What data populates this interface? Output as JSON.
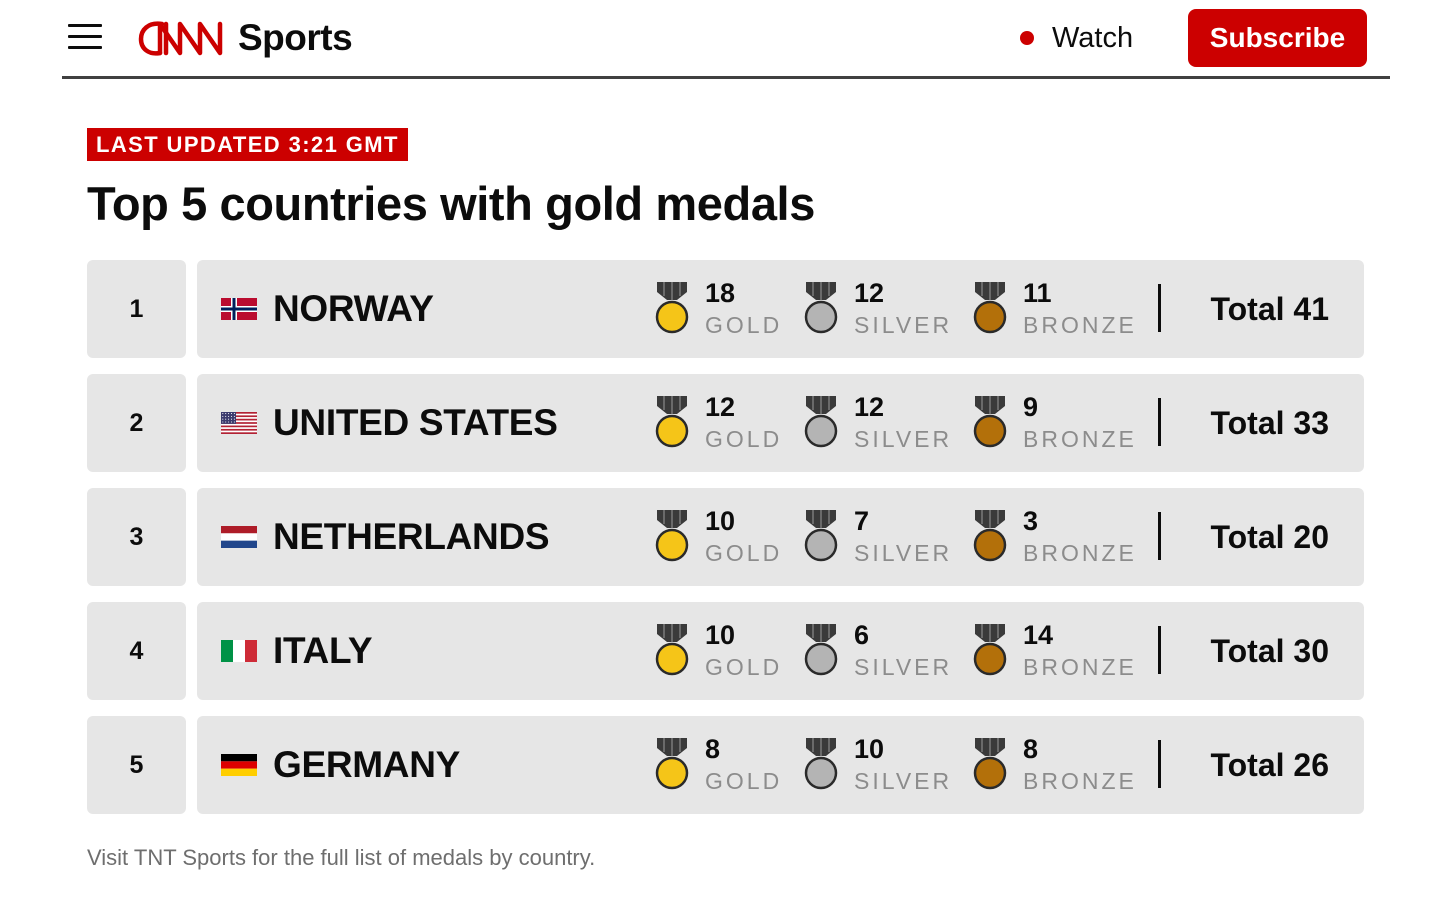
{
  "header": {
    "brand": "CNN",
    "section": "Sports",
    "watch_label": "Watch",
    "subscribe_label": "Subscribe",
    "brand_color": "#cc0000"
  },
  "badge": "LAST UPDATED 3:21 GMT",
  "title": "Top 5 countries with gold medals",
  "medal_labels": {
    "gold": "GOLD",
    "silver": "SILVER",
    "bronze": "BRONZE"
  },
  "medal_colors": {
    "gold": "#f5c518",
    "silver": "#b4b4b4",
    "bronze": "#b3700a",
    "ribbon": "#3a3a3a"
  },
  "countries": [
    {
      "rank": "1",
      "name": "NORWAY",
      "flag": "norway-flag-icon",
      "gold": "18",
      "silver": "12",
      "bronze": "11",
      "total": "Total 41"
    },
    {
      "rank": "2",
      "name": "UNITED STATES",
      "flag": "us-flag-icon",
      "gold": "12",
      "silver": "12",
      "bronze": "9",
      "total": "Total 33"
    },
    {
      "rank": "3",
      "name": "NETHERLANDS",
      "flag": "netherlands-flag-icon",
      "gold": "10",
      "silver": "7",
      "bronze": "3",
      "total": "Total 20"
    },
    {
      "rank": "4",
      "name": "ITALY",
      "flag": "italy-flag-icon",
      "gold": "10",
      "silver": "6",
      "bronze": "14",
      "total": "Total 30"
    },
    {
      "rank": "5",
      "name": "GERMANY",
      "flag": "germany-flag-icon",
      "gold": "8",
      "silver": "10",
      "bronze": "8",
      "total": "Total 26"
    }
  ],
  "footnote": "Visit TNT Sports for the full list of medals by country."
}
